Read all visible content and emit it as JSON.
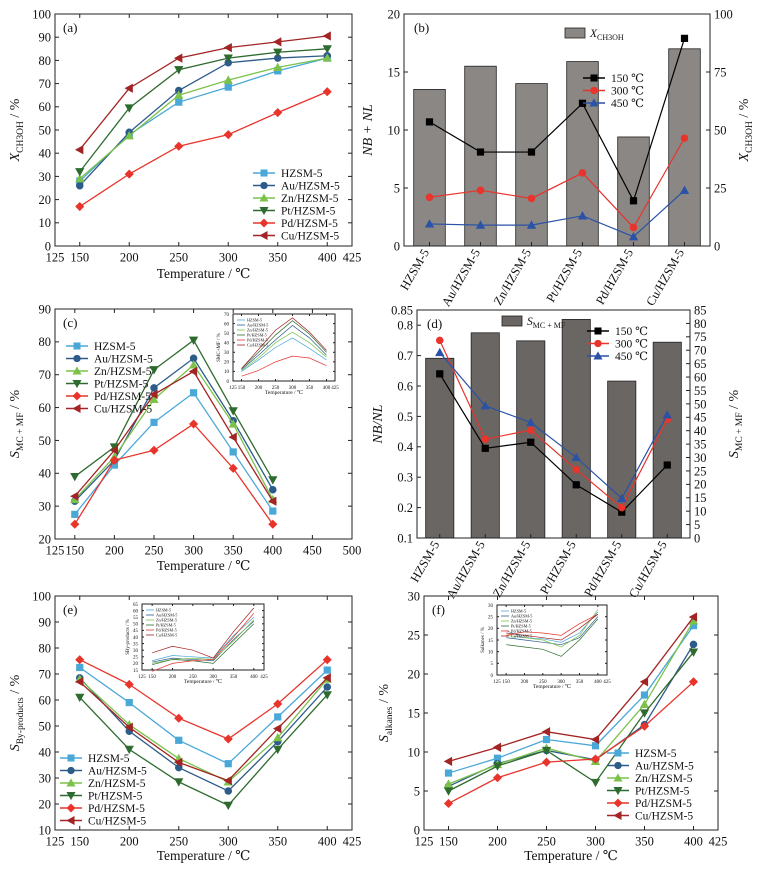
{
  "chart_data": [
    {
      "type": "line",
      "panel_label": "(a)",
      "xlabel": "Temperature / ℃",
      "ylabel": "X",
      "ylabel_sub": "CH3OH",
      "ylabel_unit": " / %",
      "xlim": [
        125,
        425
      ],
      "ylim": [
        0,
        100
      ],
      "xticks": [
        125,
        150,
        200,
        250,
        300,
        350,
        400,
        425
      ],
      "yticks": [
        0,
        10,
        20,
        30,
        40,
        50,
        60,
        70,
        80,
        90,
        100
      ],
      "x": [
        150,
        200,
        250,
        300,
        350,
        400
      ],
      "legend_position": "bottom-right",
      "series": [
        {
          "name": "HZSM-5",
          "color": "#4aa8d8",
          "marker": "square",
          "values": [
            28,
            48,
            62,
            68.5,
            75.5,
            81
          ]
        },
        {
          "name": "Au/HZSM-5",
          "color": "#2d5b8a",
          "marker": "circle",
          "values": [
            26,
            49,
            67,
            79,
            81,
            82
          ]
        },
        {
          "name": "Zn/HZSM-5",
          "color": "#7cc24a",
          "marker": "triangle-up",
          "values": [
            29,
            47.5,
            65,
            71.5,
            77,
            81
          ]
        },
        {
          "name": "Pt/HZSM-5",
          "color": "#2e6b2e",
          "marker": "triangle-down",
          "values": [
            32,
            59.5,
            76,
            81,
            83.5,
            85
          ]
        },
        {
          "name": "Pd/HZSM-5",
          "color": "#e8342b",
          "marker": "diamond",
          "values": [
            17,
            31,
            43,
            48,
            57.5,
            66.5
          ]
        },
        {
          "name": "Cu/HZSM-5",
          "color": "#a32424",
          "marker": "triangle-left",
          "values": [
            41.5,
            68,
            81,
            85.5,
            88,
            90.5
          ]
        }
      ]
    },
    {
      "type": "bar",
      "panel_label": "(b)",
      "categories": [
        "HZSM-5",
        "Au/HZSM-5",
        "Zn/HZSM-5",
        "Pt/HZSM-5",
        "Pd/HZSM-5",
        "Cu/HZSM-5"
      ],
      "ylabel": "NB + NL",
      "y2label": "X",
      "y2label_sub": "CH3OH",
      "y2label_unit": " / %",
      "ylim": [
        0,
        20
      ],
      "y2lim": [
        0,
        100
      ],
      "yticks": [
        0,
        5,
        10,
        15,
        20
      ],
      "y2ticks": [
        0,
        25,
        50,
        75,
        100
      ],
      "bar_color": "#8a8784",
      "bars": {
        "name": "X",
        "name_sub": "CH3OH",
        "axis": "right",
        "values": [
          67.5,
          77.5,
          70,
          79.5,
          47,
          85
        ]
      },
      "series": [
        {
          "name": "150 ℃",
          "color": "#000000",
          "marker": "square",
          "axis": "left",
          "values": [
            10.7,
            8.1,
            8.1,
            12.3,
            3.9,
            17.9
          ]
        },
        {
          "name": "300 ℃",
          "color": "#e8342b",
          "marker": "circle",
          "axis": "left",
          "values": [
            4.2,
            4.8,
            4.1,
            6.3,
            1.6,
            9.3
          ]
        },
        {
          "name": "450 ℃",
          "color": "#2a52a6",
          "marker": "triangle-up",
          "axis": "left",
          "values": [
            1.9,
            1.8,
            1.8,
            2.6,
            0.8,
            4.8
          ]
        }
      ],
      "legend_position": "top-right"
    },
    {
      "type": "line",
      "panel_label": "(c)",
      "xlabel": "Temperature / ℃",
      "ylabel": "S",
      "ylabel_sub": "MC + MF",
      "ylabel_unit": " / %",
      "xlim": [
        125,
        500
      ],
      "ylim": [
        20,
        90
      ],
      "xticks": [
        125,
        150,
        200,
        250,
        300,
        350,
        400,
        450,
        500
      ],
      "yticks": [
        20,
        30,
        40,
        50,
        60,
        70,
        80,
        90
      ],
      "x": [
        150,
        200,
        250,
        300,
        350,
        400
      ],
      "legend_position": "top-left",
      "series": [
        {
          "name": "HZSM-5",
          "color": "#4aa8d8",
          "marker": "square",
          "values": [
            27.5,
            42.5,
            55.5,
            64.5,
            46.5,
            28.5
          ]
        },
        {
          "name": "Au/HZSM-5",
          "color": "#2d5b8a",
          "marker": "circle",
          "values": [
            31.5,
            44,
            66,
            75,
            56,
            35
          ]
        },
        {
          "name": "Zn/HZSM-5",
          "color": "#7cc24a",
          "marker": "triangle-up",
          "values": [
            32,
            45,
            62.5,
            73,
            55,
            32
          ]
        },
        {
          "name": "Pt/HZSM-5",
          "color": "#2e6b2e",
          "marker": "triangle-down",
          "values": [
            39,
            48,
            71.5,
            80.5,
            59,
            38
          ]
        },
        {
          "name": "Pd/HZSM-5",
          "color": "#e8342b",
          "marker": "diamond",
          "values": [
            24.5,
            44,
            47,
            55,
            41.5,
            24.5
          ]
        },
        {
          "name": "Cu/HZSM-5",
          "color": "#a32424",
          "marker": "triangle-left",
          "values": [
            33,
            47,
            64,
            71,
            51,
            31.5
          ]
        }
      ],
      "inset": {
        "ylabel": "SMC+MF / %",
        "xlim": [
          125,
          425
        ],
        "ylim": [
          0,
          70
        ],
        "xticks": [
          125,
          150,
          200,
          250,
          300,
          350,
          400,
          425
        ],
        "yticks": [
          0,
          10,
          20,
          30,
          40,
          50,
          60,
          70
        ],
        "legend": [
          "HZSM-5",
          "Au/HZSM-5",
          "Zn/HZSM-5",
          "Pt/HZSM-5",
          "Pd/HZSM-5",
          "Cu/HZSM-5"
        ],
        "x": [
          150,
          200,
          250,
          300,
          350,
          400
        ],
        "series": [
          {
            "color": "#4aa8d8",
            "values": [
              10,
              22,
              35,
              45,
              34,
              22
            ]
          },
          {
            "color": "#2d5b8a",
            "values": [
              12,
              27,
              43,
              58,
              45,
              27
            ]
          },
          {
            "color": "#7cc24a",
            "values": [
              11,
              24,
              40,
              51,
              40,
              25
            ]
          },
          {
            "color": "#2e6b2e",
            "values": [
              13,
              30,
              48,
              63,
              49,
              30
            ]
          },
          {
            "color": "#e8342b",
            "values": [
              5,
              11,
              20,
              26,
              24,
              16
            ]
          },
          {
            "color": "#a32424",
            "values": [
              13,
              33,
              53,
              66,
              51,
              32
            ]
          }
        ]
      }
    },
    {
      "type": "bar",
      "panel_label": "(d)",
      "categories": [
        "HZSM-5",
        "Au/HZSM-5",
        "Zn/HZSM-5",
        "Pt/HZSM-5",
        "Pd/HZSM-5",
        "Cu/HZSM-5"
      ],
      "ylabel": "NB/NL",
      "y2label": "S",
      "y2label_sub": "MC + MF",
      "y2label_unit": " / %",
      "ylim": [
        0.1,
        0.85
      ],
      "y2lim": [
        0,
        85
      ],
      "yticks": [
        0.1,
        0.2,
        0.3,
        0.4,
        0.5,
        0.6,
        0.7,
        0.8,
        0.85
      ],
      "y2ticks": [
        0,
        5,
        10,
        15,
        20,
        25,
        30,
        35,
        40,
        45,
        50,
        55,
        60,
        65,
        70,
        75,
        80,
        85
      ],
      "bar_color": "#6a6663",
      "bars": {
        "name": "S",
        "name_sub": "MC + MF",
        "axis": "right",
        "values": [
          67,
          76.5,
          73.5,
          81.5,
          58.5,
          73
        ]
      },
      "series": [
        {
          "name": "150 ℃",
          "color": "#000000",
          "marker": "square",
          "axis": "left",
          "values": [
            0.64,
            0.395,
            0.415,
            0.275,
            0.185,
            0.34
          ]
        },
        {
          "name": "300 ℃",
          "color": "#e8342b",
          "marker": "circle",
          "axis": "left",
          "values": [
            0.75,
            0.425,
            0.455,
            0.325,
            0.2,
            0.49
          ]
        },
        {
          "name": "450 ℃",
          "color": "#2a52a6",
          "marker": "triangle-up",
          "axis": "left",
          "values": [
            0.71,
            0.535,
            0.48,
            0.365,
            0.23,
            0.505
          ]
        }
      ],
      "legend_position": "top-right"
    },
    {
      "type": "line",
      "panel_label": "(e)",
      "xlabel": "Temperature / ℃",
      "ylabel": "S",
      "ylabel_sub": "By-products",
      "ylabel_unit": " / %",
      "xlim": [
        125,
        425
      ],
      "ylim": [
        10,
        100
      ],
      "xticks": [
        125,
        150,
        200,
        250,
        300,
        350,
        400,
        425
      ],
      "yticks": [
        10,
        20,
        30,
        40,
        50,
        60,
        70,
        80,
        90,
        100
      ],
      "x": [
        150,
        200,
        250,
        300,
        350,
        400
      ],
      "legend_position": "bottom-left",
      "series": [
        {
          "name": "HZSM-5",
          "color": "#4aa8d8",
          "marker": "square",
          "values": [
            72.5,
            59,
            44.5,
            35.5,
            53.5,
            71.5
          ]
        },
        {
          "name": "Au/HZSM-5",
          "color": "#2d5b8a",
          "marker": "circle",
          "values": [
            68.5,
            48,
            34,
            25,
            44,
            65
          ]
        },
        {
          "name": "Zn/HZSM-5",
          "color": "#7cc24a",
          "marker": "triangle-up",
          "values": [
            68,
            50.5,
            37.5,
            28.5,
            45.5,
            68
          ]
        },
        {
          "name": "Pt/HZSM-5",
          "color": "#2e6b2e",
          "marker": "triangle-down",
          "values": [
            61,
            41,
            28.5,
            19.5,
            41,
            62
          ]
        },
        {
          "name": "Pd/HZSM-5",
          "color": "#e8342b",
          "marker": "diamond",
          "values": [
            75.5,
            66,
            53,
            45,
            58.5,
            75.5
          ]
        },
        {
          "name": "Cu/HZSM-5",
          "color": "#a32424",
          "marker": "triangle-left",
          "values": [
            67,
            49.5,
            36,
            29,
            49,
            68.5
          ]
        }
      ],
      "inset": {
        "ylabel": "SBy-products / %",
        "xlim": [
          125,
          425
        ],
        "ylim": [
          15,
          65
        ],
        "xticks": [
          125,
          150,
          200,
          250,
          300,
          350,
          400,
          425
        ],
        "yticks": [
          15,
          20,
          25,
          30,
          35,
          40,
          45,
          50,
          55,
          60,
          65
        ],
        "legend": [
          "HZSM-5",
          "Au/HZSM-5",
          "Zn/HZSM-5",
          "Pt/HZSM-5",
          "Pd/HZSM-5",
          "Cu/HZSM-5"
        ],
        "x": [
          150,
          200,
          250,
          300,
          350,
          400
        ],
        "series": [
          {
            "color": "#4aa8d8",
            "values": [
              22,
              26,
              25,
              24,
              41,
              55
            ]
          },
          {
            "color": "#2d5b8a",
            "values": [
              21,
              24,
              23,
              22,
              38,
              52
            ]
          },
          {
            "color": "#7cc24a",
            "values": [
              20,
              23,
              24,
              23,
              37,
              53
            ]
          },
          {
            "color": "#2e6b2e",
            "values": [
              19,
              23,
              22,
              20,
              35,
              50
            ]
          },
          {
            "color": "#e8342b",
            "values": [
              14,
              20,
              22,
              23,
              40,
              58
            ]
          },
          {
            "color": "#a32424",
            "values": [
              28,
              33,
              30,
              24,
              44,
              62
            ]
          }
        ]
      }
    },
    {
      "type": "line",
      "panel_label": "(f)",
      "xlabel": "Temperature / ℃",
      "ylabel": "S",
      "ylabel_sub": "alkanes",
      "ylabel_unit": " / %",
      "xlim": [
        125,
        425
      ],
      "ylim": [
        0,
        30
      ],
      "xticks": [
        125,
        150,
        200,
        250,
        300,
        350,
        400,
        425
      ],
      "yticks": [
        0,
        5,
        10,
        15,
        20,
        25,
        30
      ],
      "x": [
        150,
        200,
        250,
        300,
        350,
        400
      ],
      "legend_position": "bottom-right",
      "series": [
        {
          "name": "HZSM-5",
          "color": "#4aa8d8",
          "marker": "square",
          "values": [
            7.3,
            9.2,
            11.6,
            10.8,
            17.3,
            26.2
          ]
        },
        {
          "name": "Au/HZSM-5",
          "color": "#2d5b8a",
          "marker": "circle",
          "values": [
            5.6,
            8.5,
            10.2,
            9.0,
            13.5,
            23.8
          ]
        },
        {
          "name": "Zn/HZSM-5",
          "color": "#7cc24a",
          "marker": "triangle-up",
          "values": [
            5.9,
            8.4,
            10.5,
            8.8,
            16.1,
            26.8
          ]
        },
        {
          "name": "Pt/HZSM-5",
          "color": "#2e6b2e",
          "marker": "triangle-down",
          "values": [
            5.0,
            8.2,
            10.2,
            6.1,
            15.0,
            22.8
          ]
        },
        {
          "name": "Pd/HZSM-5",
          "color": "#e8342b",
          "marker": "diamond",
          "values": [
            3.4,
            6.7,
            8.7,
            9.1,
            13.3,
            19.0
          ]
        },
        {
          "name": "Cu/HZSM-5",
          "color": "#a32424",
          "marker": "triangle-left",
          "values": [
            8.8,
            10.6,
            12.6,
            11.6,
            19.0,
            27.3
          ]
        }
      ],
      "inset": {
        "ylabel": "Salkanes / %",
        "xlim": [
          125,
          425
        ],
        "ylim": [
          0,
          30
        ],
        "xticks": [
          125,
          150,
          200,
          250,
          300,
          350,
          400,
          425
        ],
        "yticks": [
          0,
          5,
          10,
          15,
          20,
          25,
          30
        ],
        "legend": [
          "HZSM-5",
          "Au/HZSM-5",
          "Zn/HZSM-5",
          "Pt/HZSM-5",
          "Pd/HZSM-5",
          "Cu/HZSM-5"
        ],
        "x": [
          150,
          200,
          250,
          300,
          350,
          400
        ],
        "series": [
          {
            "color": "#4aa8d8",
            "values": [
              19,
              16,
              15.5,
              14,
              18,
              27
            ]
          },
          {
            "color": "#2d5b8a",
            "values": [
              16,
              15,
              14,
              13,
              16,
              25
            ]
          },
          {
            "color": "#7cc24a",
            "values": [
              17,
              16,
              15,
              12,
              17,
              28
            ]
          },
          {
            "color": "#2e6b2e",
            "values": [
              13,
              12,
              11,
              8,
              15,
              24
            ]
          },
          {
            "color": "#e8342b",
            "values": [
              17,
              18.5,
              18,
              17,
              22,
              26
            ]
          },
          {
            "color": "#a32424",
            "values": [
              18,
              17,
              16,
              15,
              20,
              26
            ]
          }
        ]
      }
    }
  ]
}
